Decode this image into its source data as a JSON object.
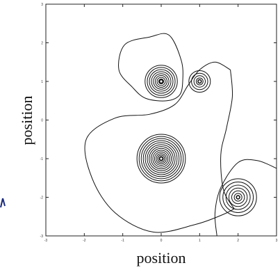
{
  "chart_data": {
    "type": "contour",
    "xlabel": "position",
    "ylabel": "position",
    "xlim": [
      -3,
      3
    ],
    "ylim": [
      -3,
      3
    ],
    "x_ticks": [
      "-3",
      "-2",
      "-1",
      "0",
      "1",
      "2",
      "3"
    ],
    "y_ticks": [
      "3",
      "2",
      "1",
      "0",
      "-1",
      "-2",
      "-3"
    ],
    "grid": false,
    "line_color": "#111111",
    "centers": [
      {
        "x": 0,
        "y": 1,
        "rings": 9
      },
      {
        "x": 1,
        "y": 1,
        "rings": 5
      },
      {
        "x": 0,
        "y": -1,
        "rings": 14
      },
      {
        "x": 2,
        "y": -2,
        "rings": 7
      }
    ]
  },
  "colors": {
    "frame": "#222222",
    "contour": "#111111",
    "accent_mark": "#1a2a7a"
  }
}
